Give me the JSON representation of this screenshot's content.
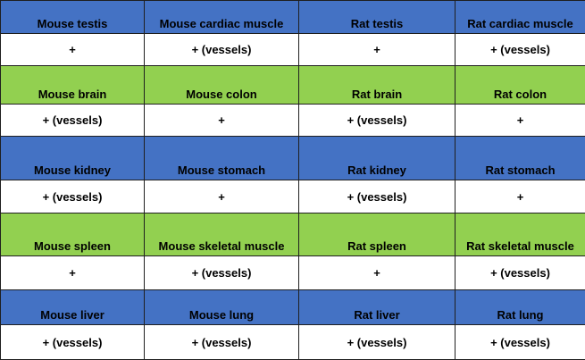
{
  "rows": [
    {
      "type": "header",
      "color": "#4472c4",
      "cells": [
        "Mouse testis",
        "Mouse cardiac muscle",
        "Rat testis",
        "Rat cardiac muscle"
      ]
    },
    {
      "type": "value",
      "cells": [
        "+",
        "+ (vessels)",
        "+",
        "+ (vessels)"
      ]
    },
    {
      "type": "header",
      "color": "#92d050",
      "cells": [
        "Mouse brain",
        "Mouse colon",
        "Rat brain",
        "Rat colon"
      ]
    },
    {
      "type": "value",
      "cells": [
        "+ (vessels)",
        "+",
        "+ (vessels)",
        "+"
      ]
    },
    {
      "type": "header",
      "color": "#4472c4",
      "cells": [
        "Mouse kidney",
        "Mouse stomach",
        "Rat kidney",
        "Rat stomach"
      ]
    },
    {
      "type": "value",
      "cells": [
        "+ (vessels)",
        "+",
        "+ (vessels)",
        "+"
      ]
    },
    {
      "type": "header",
      "color": "#92d050",
      "cells": [
        "Mouse spleen",
        "Mouse skeletal muscle",
        "Rat spleen",
        "Rat skeletal muscle"
      ]
    },
    {
      "type": "value",
      "cells": [
        "+",
        "+ (vessels)",
        "+",
        "+ (vessels)"
      ]
    },
    {
      "type": "header",
      "color": "#4472c4",
      "cells": [
        "Mouse liver",
        "Mouse lung",
        "Rat liver",
        "Rat lung"
      ]
    },
    {
      "type": "value",
      "cells": [
        "+ (vessels)",
        "+ (vessels)",
        "+ (vessels)",
        "+ (vessels)"
      ]
    }
  ]
}
